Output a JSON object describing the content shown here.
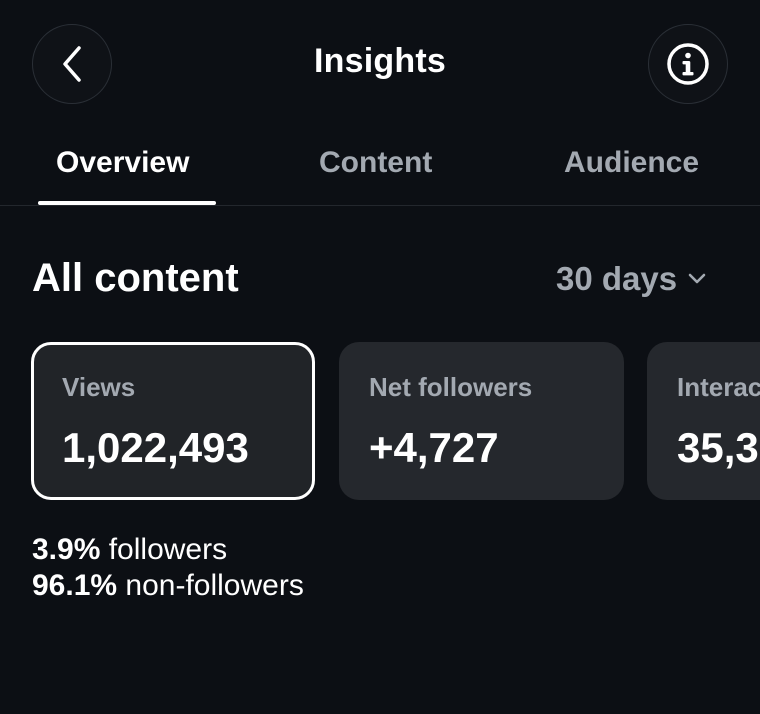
{
  "header": {
    "title": "Insights",
    "back_icon": "chevron-left-icon",
    "info_icon": "info-icon"
  },
  "tabs": [
    {
      "label": "Overview",
      "active": true
    },
    {
      "label": "Content",
      "active": false
    },
    {
      "label": "Audience",
      "active": false
    }
  ],
  "section": {
    "title": "All content",
    "range_label": "30 days",
    "range_icon": "chevron-down-icon"
  },
  "cards": [
    {
      "label": "Views",
      "value": "1,022,493",
      "selected": true
    },
    {
      "label": "Net followers",
      "value": "+4,727",
      "selected": false
    },
    {
      "label": "Interac",
      "value": "35,3",
      "selected": false
    }
  ],
  "breakdown": [
    {
      "percent": "3.9%",
      "label": " followers"
    },
    {
      "percent": "96.1%",
      "label": " non-followers"
    }
  ],
  "colors": {
    "background": "#0c0f14",
    "card": "#25282d",
    "muted_text": "#a3a9b1",
    "text": "#ffffff"
  }
}
